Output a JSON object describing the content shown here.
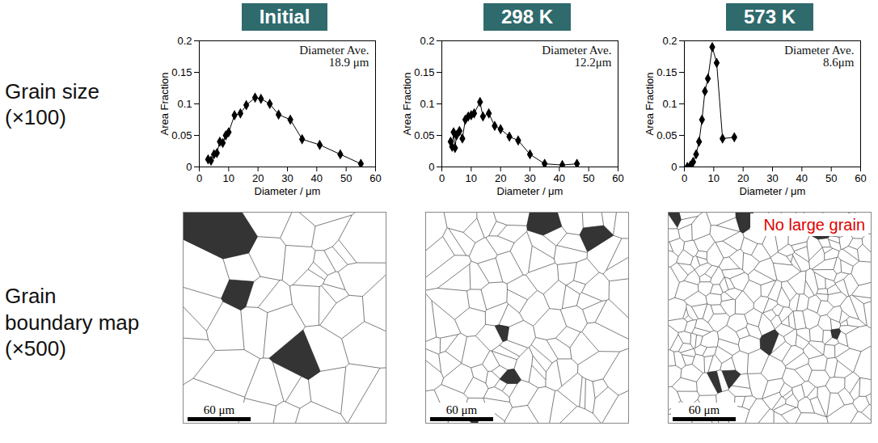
{
  "row_labels": [
    "Grain size (×100)",
    "Grain boundary map (×500)"
  ],
  "chart_data": [
    {
      "type": "line",
      "title": "Initial",
      "annotation": "Diameter Ave.\n18.9 μm",
      "xlabel": "Diameter / μm",
      "ylabel": "Area Fraction",
      "x": [
        3,
        4,
        5,
        6,
        7,
        8,
        9,
        10,
        12,
        14,
        16,
        19,
        21,
        24,
        27,
        31,
        35,
        41,
        48,
        55
      ],
      "values": [
        0.012,
        0.01,
        0.02,
        0.022,
        0.04,
        0.038,
        0.05,
        0.055,
        0.082,
        0.085,
        0.098,
        0.11,
        0.108,
        0.1,
        0.083,
        0.075,
        0.044,
        0.035,
        0.02,
        0.005
      ],
      "xlim": [
        0,
        60
      ],
      "xticks": [
        0,
        10,
        20,
        30,
        40,
        50,
        60
      ],
      "ylim": [
        0,
        0.2
      ],
      "yticks": [
        0,
        0.05,
        0.1,
        0.15,
        0.2
      ],
      "color": "#000000",
      "marker": "diamond"
    },
    {
      "type": "line",
      "title": "298 K",
      "annotation": "Diameter Ave.\n12.2μm",
      "xlabel": "Diameter / μm",
      "ylabel": "Area Fraction",
      "x": [
        3,
        3.5,
        4,
        4.5,
        5,
        6,
        7,
        8,
        9,
        10,
        11,
        13,
        14,
        16,
        18,
        20,
        23,
        26,
        30,
        35,
        41,
        46
      ],
      "values": [
        0.04,
        0.032,
        0.055,
        0.03,
        0.05,
        0.057,
        0.045,
        0.075,
        0.08,
        0.082,
        0.085,
        0.103,
        0.08,
        0.085,
        0.065,
        0.06,
        0.048,
        0.042,
        0.02,
        0.005,
        0.003,
        0.005
      ],
      "xlim": [
        0,
        60
      ],
      "xticks": [
        0,
        10,
        20,
        30,
        40,
        50,
        60
      ],
      "ylim": [
        0,
        0.2
      ],
      "yticks": [
        0,
        0.05,
        0.1,
        0.15,
        0.2
      ],
      "color": "#000000",
      "marker": "diamond"
    },
    {
      "type": "line",
      "title": "573 K",
      "annotation": "Diameter Ave.\n8.6μm",
      "xlabel": "Diameter / μm",
      "ylabel": "Area Fraction",
      "x": [
        1,
        2,
        3,
        4,
        5,
        6,
        7,
        8,
        9.5,
        11,
        13,
        17
      ],
      "values": [
        0,
        0.002,
        0.008,
        0.02,
        0.04,
        0.075,
        0.12,
        0.14,
        0.19,
        0.165,
        0.045,
        0.047
      ],
      "xlim": [
        0,
        60
      ],
      "xticks": [
        0,
        10,
        20,
        30,
        40,
        50,
        60
      ],
      "ylim": [
        0,
        0.2
      ],
      "yticks": [
        0,
        0.05,
        0.1,
        0.15,
        0.2
      ],
      "color": "#000000",
      "marker": "diamond"
    }
  ],
  "maps": [
    {
      "scale_bar": "60 μm"
    },
    {
      "scale_bar": "60 μm"
    },
    {
      "scale_bar": "60 μm",
      "annotation": "No large grain"
    }
  ]
}
